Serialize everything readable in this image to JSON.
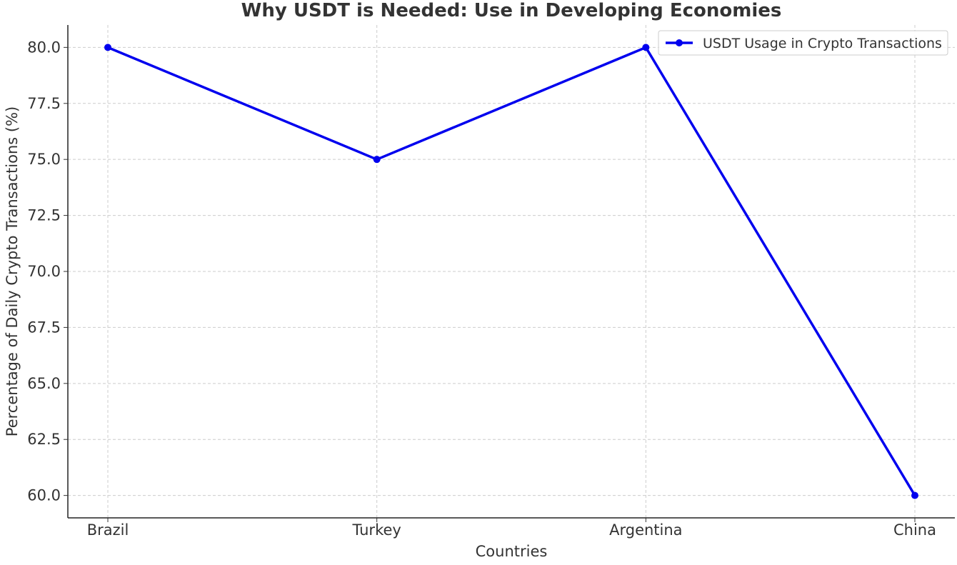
{
  "chart_data": {
    "type": "line",
    "title": "Why USDT is Needed: Use in Developing Economies",
    "xlabel": "Countries",
    "ylabel": "Percentage of Daily Crypto Transactions (%)",
    "categories": [
      "Brazil",
      "Turkey",
      "Argentina",
      "China"
    ],
    "series": [
      {
        "name": "USDT Usage in Crypto Transactions",
        "values": [
          80,
          75,
          80,
          60
        ],
        "color": "#0000ee"
      }
    ],
    "ylim": [
      59,
      81
    ],
    "yticks": [
      60.0,
      62.5,
      65.0,
      67.5,
      70.0,
      72.5,
      75.0,
      77.5,
      80.0
    ],
    "grid": true,
    "legend_position": "top-right"
  }
}
